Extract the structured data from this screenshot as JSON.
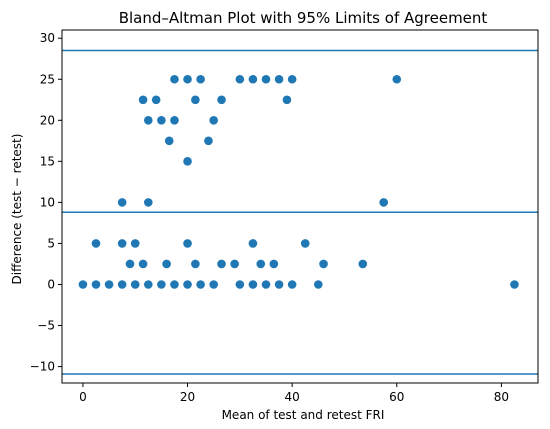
{
  "chart_data": {
    "type": "scatter",
    "title": "Bland–Altman Plot with 95% Limits of Agreement",
    "xlabel": "Mean of test and retest FRI",
    "ylabel": "Difference (test − retest)",
    "xlim": [
      -4,
      87
    ],
    "ylim": [
      -12,
      31
    ],
    "xticks": [
      0,
      20,
      40,
      60,
      80
    ],
    "yticks": [
      -10,
      -5,
      0,
      5,
      10,
      15,
      20,
      25,
      30
    ],
    "grid": false,
    "reference_lines": [
      {
        "y": 28.5
      },
      {
        "y": 8.8
      },
      {
        "y": -10.9
      }
    ],
    "colors": {
      "points": "#1f77b4",
      "lines": "#1f77b4"
    },
    "points": [
      {
        "x": 0,
        "y": 0
      },
      {
        "x": 2.5,
        "y": 0
      },
      {
        "x": 5,
        "y": 0
      },
      {
        "x": 7.5,
        "y": 0
      },
      {
        "x": 10,
        "y": 0
      },
      {
        "x": 12.5,
        "y": 0
      },
      {
        "x": 15,
        "y": 0
      },
      {
        "x": 17.5,
        "y": 0
      },
      {
        "x": 20,
        "y": 0
      },
      {
        "x": 22.5,
        "y": 0
      },
      {
        "x": 25,
        "y": 0
      },
      {
        "x": 30,
        "y": 0
      },
      {
        "x": 32.5,
        "y": 0
      },
      {
        "x": 35,
        "y": 0
      },
      {
        "x": 37.5,
        "y": 0
      },
      {
        "x": 40,
        "y": 0
      },
      {
        "x": 45,
        "y": 0
      },
      {
        "x": 82.5,
        "y": 0
      },
      {
        "x": 9,
        "y": 2.5
      },
      {
        "x": 11.5,
        "y": 2.5
      },
      {
        "x": 16,
        "y": 2.5
      },
      {
        "x": 21.5,
        "y": 2.5
      },
      {
        "x": 26.5,
        "y": 2.5
      },
      {
        "x": 29,
        "y": 2.5
      },
      {
        "x": 34,
        "y": 2.5
      },
      {
        "x": 36.5,
        "y": 2.5
      },
      {
        "x": 46,
        "y": 2.5
      },
      {
        "x": 53.5,
        "y": 2.5
      },
      {
        "x": 2.5,
        "y": 5
      },
      {
        "x": 7.5,
        "y": 5
      },
      {
        "x": 10,
        "y": 5
      },
      {
        "x": 20,
        "y": 5
      },
      {
        "x": 32.5,
        "y": 5
      },
      {
        "x": 42.5,
        "y": 5
      },
      {
        "x": 7.5,
        "y": 10
      },
      {
        "x": 12.5,
        "y": 10
      },
      {
        "x": 57.5,
        "y": 10
      },
      {
        "x": 20,
        "y": 15
      },
      {
        "x": 16.5,
        "y": 17.5
      },
      {
        "x": 24,
        "y": 17.5
      },
      {
        "x": 12.5,
        "y": 20
      },
      {
        "x": 15,
        "y": 20
      },
      {
        "x": 17.5,
        "y": 20
      },
      {
        "x": 25,
        "y": 20
      },
      {
        "x": 11.5,
        "y": 22.5
      },
      {
        "x": 14,
        "y": 22.5
      },
      {
        "x": 21.5,
        "y": 22.5
      },
      {
        "x": 26.5,
        "y": 22.5
      },
      {
        "x": 39,
        "y": 22.5
      },
      {
        "x": 17.5,
        "y": 25
      },
      {
        "x": 20,
        "y": 25
      },
      {
        "x": 22.5,
        "y": 25
      },
      {
        "x": 30,
        "y": 25
      },
      {
        "x": 32.5,
        "y": 25
      },
      {
        "x": 35,
        "y": 25
      },
      {
        "x": 37.5,
        "y": 25
      },
      {
        "x": 40,
        "y": 25
      },
      {
        "x": 60,
        "y": 25
      }
    ]
  }
}
